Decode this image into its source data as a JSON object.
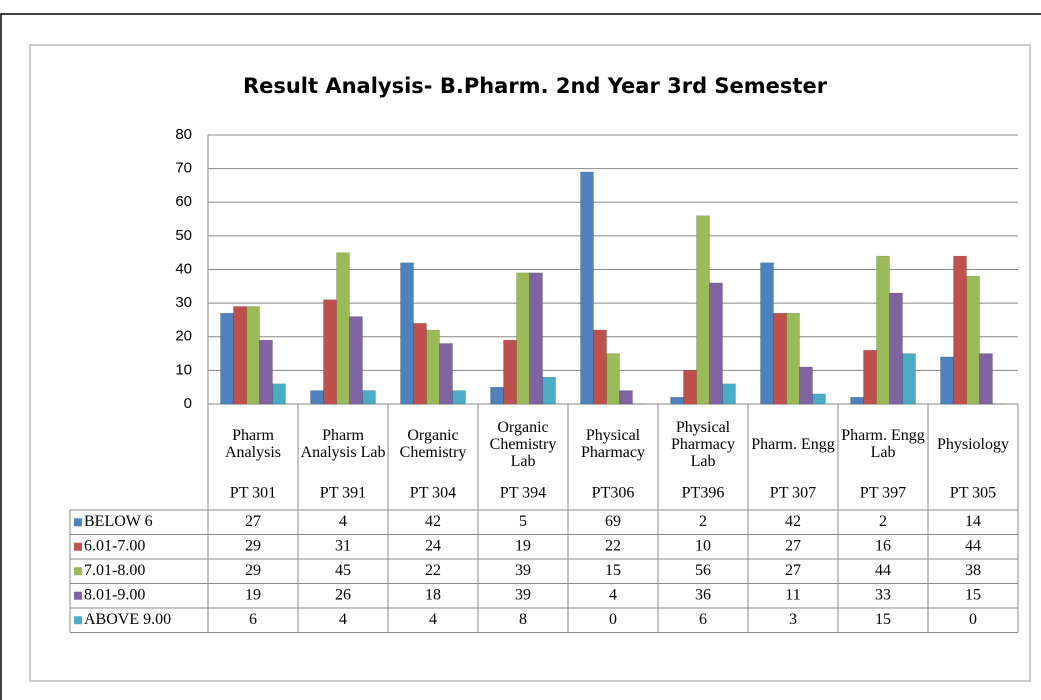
{
  "chart_data": {
    "type": "bar",
    "title": "Result Analysis- B.Pharm. 2nd Year 3rd Semester",
    "categories": [
      "Pharm Analysis",
      "Pharm Analysis Lab",
      "Organic Chemistry",
      "Organic Chemistry Lab",
      "Physical Pharmacy",
      "Physical Pharmacy Lab",
      "Pharm. Engg",
      "Pharm. Engg Lab",
      "Physiology"
    ],
    "category_codes": [
      "PT 301",
      "PT 391",
      "PT 304",
      "PT 394",
      "PT306",
      "PT396",
      "PT 307",
      "PT 397",
      "PT 305"
    ],
    "series": [
      {
        "name": "BELOW 6",
        "color": "#4f81bd",
        "values": [
          27,
          4,
          42,
          5,
          69,
          2,
          42,
          2,
          14
        ]
      },
      {
        "name": "6.01-7.00",
        "color": "#c0504d",
        "values": [
          29,
          31,
          24,
          19,
          22,
          10,
          27,
          16,
          44
        ]
      },
      {
        "name": "7.01-8.00",
        "color": "#9bbb59",
        "values": [
          29,
          45,
          22,
          39,
          15,
          56,
          27,
          44,
          38
        ]
      },
      {
        "name": "8.01-9.00",
        "color": "#8064a2",
        "values": [
          19,
          26,
          18,
          39,
          4,
          36,
          11,
          33,
          15
        ]
      },
      {
        "name": "ABOVE 9.00",
        "color": "#4bacc6",
        "values": [
          6,
          4,
          4,
          8,
          0,
          6,
          3,
          15,
          0
        ]
      }
    ],
    "ylim": [
      0,
      80
    ],
    "yticks": [
      0,
      10,
      20,
      30,
      40,
      50,
      60,
      70,
      80
    ],
    "grid": true,
    "data_table": true
  }
}
